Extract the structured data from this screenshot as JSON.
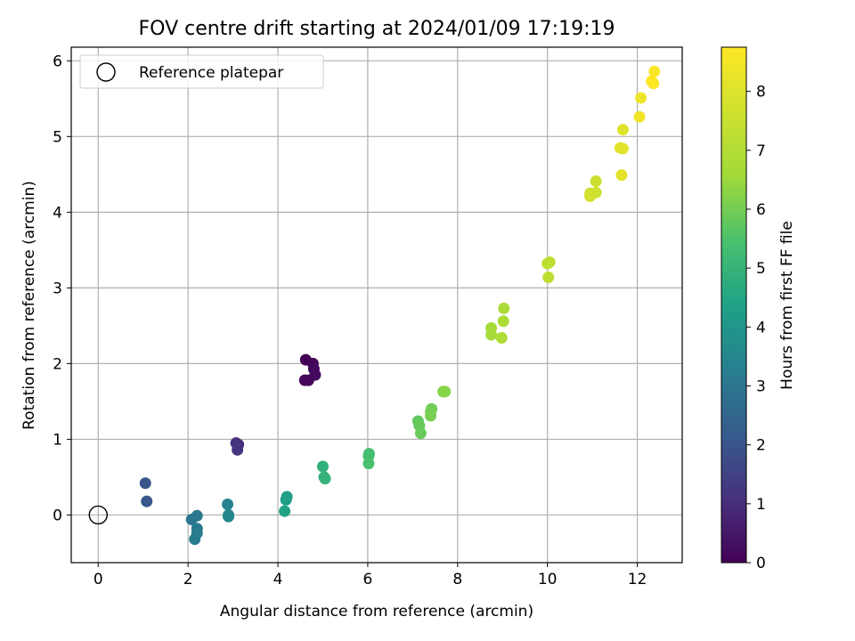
{
  "chart_data": {
    "type": "scatter",
    "title": "FOV centre drift starting at 2024/01/09 17:19:19",
    "xlabel": "Angular distance from reference (arcmin)",
    "ylabel": "Rotation from reference (arcmin)",
    "xlim": [
      -0.6,
      13.0
    ],
    "ylim": [
      -0.63,
      6.18
    ],
    "xticks": [
      0,
      2,
      4,
      6,
      8,
      10,
      12
    ],
    "xtick_labels": [
      "0",
      "2",
      "4",
      "6",
      "8",
      "10",
      "12"
    ],
    "yticks": [
      0,
      1,
      2,
      3,
      4,
      5,
      6
    ],
    "ytick_labels": [
      "0",
      "1",
      "2",
      "3",
      "4",
      "5",
      "6"
    ],
    "grid": true,
    "legend": {
      "position": "top-left",
      "entries": [
        "Reference platepar"
      ]
    },
    "reference_point": {
      "x": 0,
      "y": 0,
      "label": "Reference platepar"
    },
    "colorbar": {
      "label": "Hours from first FF file",
      "colormap": "viridis",
      "range": [
        0,
        8.75
      ],
      "ticks": [
        0,
        1,
        2,
        3,
        4,
        5,
        6,
        7,
        8
      ],
      "tick_labels": [
        "0",
        "1",
        "2",
        "3",
        "4",
        "5",
        "6",
        "7",
        "8"
      ]
    },
    "points": [
      {
        "x": 4.62,
        "y": 2.05,
        "c": 0.0
      },
      {
        "x": 4.78,
        "y": 2.0,
        "c": 0.1
      },
      {
        "x": 4.8,
        "y": 1.93,
        "c": 0.15
      },
      {
        "x": 4.83,
        "y": 1.85,
        "c": 0.2
      },
      {
        "x": 4.6,
        "y": 1.78,
        "c": 0.1
      },
      {
        "x": 4.68,
        "y": 1.78,
        "c": 0.12
      },
      {
        "x": 3.07,
        "y": 0.95,
        "c": 1.05
      },
      {
        "x": 3.12,
        "y": 0.93,
        "c": 1.1
      },
      {
        "x": 3.1,
        "y": 0.86,
        "c": 1.15
      },
      {
        "x": 1.05,
        "y": 0.42,
        "c": 2.0
      },
      {
        "x": 1.08,
        "y": 0.18,
        "c": 2.05
      },
      {
        "x": 2.08,
        "y": -0.06,
        "c": 3.0
      },
      {
        "x": 2.2,
        "y": -0.01,
        "c": 3.05
      },
      {
        "x": 2.2,
        "y": -0.18,
        "c": 3.1
      },
      {
        "x": 2.2,
        "y": -0.24,
        "c": 3.15
      },
      {
        "x": 2.15,
        "y": -0.32,
        "c": 3.2
      },
      {
        "x": 2.88,
        "y": 0.14,
        "c": 3.4
      },
      {
        "x": 2.9,
        "y": 0.0,
        "c": 3.45
      },
      {
        "x": 2.9,
        "y": -0.02,
        "c": 3.5
      },
      {
        "x": 4.2,
        "y": 0.24,
        "c": 4.3
      },
      {
        "x": 4.18,
        "y": 0.2,
        "c": 4.35
      },
      {
        "x": 4.15,
        "y": 0.05,
        "c": 4.4
      },
      {
        "x": 5.0,
        "y": 0.64,
        "c": 4.85
      },
      {
        "x": 5.03,
        "y": 0.5,
        "c": 4.9
      },
      {
        "x": 5.05,
        "y": 0.48,
        "c": 4.95
      },
      {
        "x": 6.03,
        "y": 0.81,
        "c": 5.35
      },
      {
        "x": 6.02,
        "y": 0.78,
        "c": 5.4
      },
      {
        "x": 6.02,
        "y": 0.68,
        "c": 5.45
      },
      {
        "x": 7.12,
        "y": 1.24,
        "c": 5.75
      },
      {
        "x": 7.15,
        "y": 1.18,
        "c": 5.8
      },
      {
        "x": 7.18,
        "y": 1.08,
        "c": 5.85
      },
      {
        "x": 7.42,
        "y": 1.4,
        "c": 5.95
      },
      {
        "x": 7.4,
        "y": 1.36,
        "c": 6.0
      },
      {
        "x": 7.4,
        "y": 1.31,
        "c": 6.05
      },
      {
        "x": 7.68,
        "y": 1.63,
        "c": 6.2
      },
      {
        "x": 7.72,
        "y": 1.63,
        "c": 6.25
      },
      {
        "x": 8.75,
        "y": 2.47,
        "c": 6.65
      },
      {
        "x": 8.75,
        "y": 2.38,
        "c": 6.7
      },
      {
        "x": 9.03,
        "y": 2.73,
        "c": 6.8
      },
      {
        "x": 9.02,
        "y": 2.56,
        "c": 6.85
      },
      {
        "x": 8.98,
        "y": 2.34,
        "c": 6.9
      },
      {
        "x": 10.05,
        "y": 3.34,
        "c": 7.2
      },
      {
        "x": 10.0,
        "y": 3.32,
        "c": 7.25
      },
      {
        "x": 10.02,
        "y": 3.14,
        "c": 7.3
      },
      {
        "x": 11.08,
        "y": 4.41,
        "c": 7.6
      },
      {
        "x": 10.95,
        "y": 4.25,
        "c": 7.65
      },
      {
        "x": 11.08,
        "y": 4.26,
        "c": 7.7
      },
      {
        "x": 10.95,
        "y": 4.21,
        "c": 7.75
      },
      {
        "x": 11.68,
        "y": 5.09,
        "c": 8.0
      },
      {
        "x": 11.62,
        "y": 4.85,
        "c": 8.05
      },
      {
        "x": 11.68,
        "y": 4.84,
        "c": 8.1
      },
      {
        "x": 11.65,
        "y": 4.49,
        "c": 8.15
      },
      {
        "x": 12.08,
        "y": 5.51,
        "c": 8.4
      },
      {
        "x": 12.05,
        "y": 5.26,
        "c": 8.45
      },
      {
        "x": 12.38,
        "y": 5.86,
        "c": 8.65
      },
      {
        "x": 12.32,
        "y": 5.73,
        "c": 8.7
      },
      {
        "x": 12.36,
        "y": 5.7,
        "c": 8.75
      }
    ]
  }
}
